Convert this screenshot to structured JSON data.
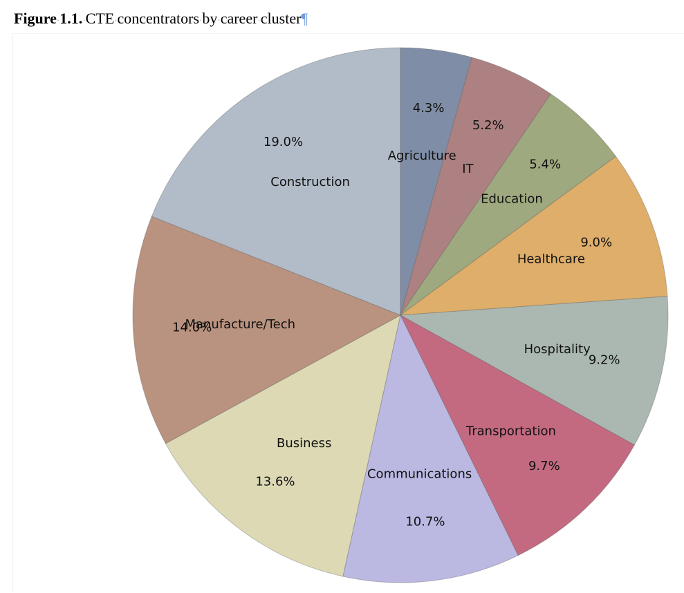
{
  "caption": {
    "figure_label": "Figure",
    "figure_number": "1.1.",
    "text_words": [
      "CTE",
      "concentrators",
      "by",
      "career",
      "cluster"
    ],
    "pilcrow": "¶"
  },
  "chart_data": {
    "type": "pie",
    "title": "",
    "start_angle_deg": 90,
    "direction": "clockwise",
    "slices": [
      {
        "label": "Agriculture",
        "value": 4.3,
        "pct_label": "4.3%",
        "color": "#7f8ea6"
      },
      {
        "label": "IT",
        "value": 5.2,
        "pct_label": "5.2%",
        "color": "#ad8181"
      },
      {
        "label": "Education",
        "value": 5.4,
        "pct_label": "5.4%",
        "color": "#9ea97f"
      },
      {
        "label": "Healthcare",
        "value": 9.0,
        "pct_label": "9.0%",
        "color": "#deae6a"
      },
      {
        "label": "Hospitality",
        "value": 9.2,
        "pct_label": "9.2%",
        "color": "#abb8b1"
      },
      {
        "label": "Transportation",
        "value": 9.7,
        "pct_label": "9.7%",
        "color": "#c36a81"
      },
      {
        "label": "Communications",
        "value": 10.7,
        "pct_label": "10.7%",
        "color": "#bbb9e2"
      },
      {
        "label": "Business",
        "value": 13.6,
        "pct_label": "13.6%",
        "color": "#dcd9b4"
      },
      {
        "label": "Manufacture/Tech",
        "value": 14.0,
        "pct_label": "14.0%",
        "color": "#b9937f"
      },
      {
        "label": "Construction",
        "value": 19.0,
        "pct_label": "19.0%",
        "color": "#b2bcc8"
      }
    ]
  }
}
